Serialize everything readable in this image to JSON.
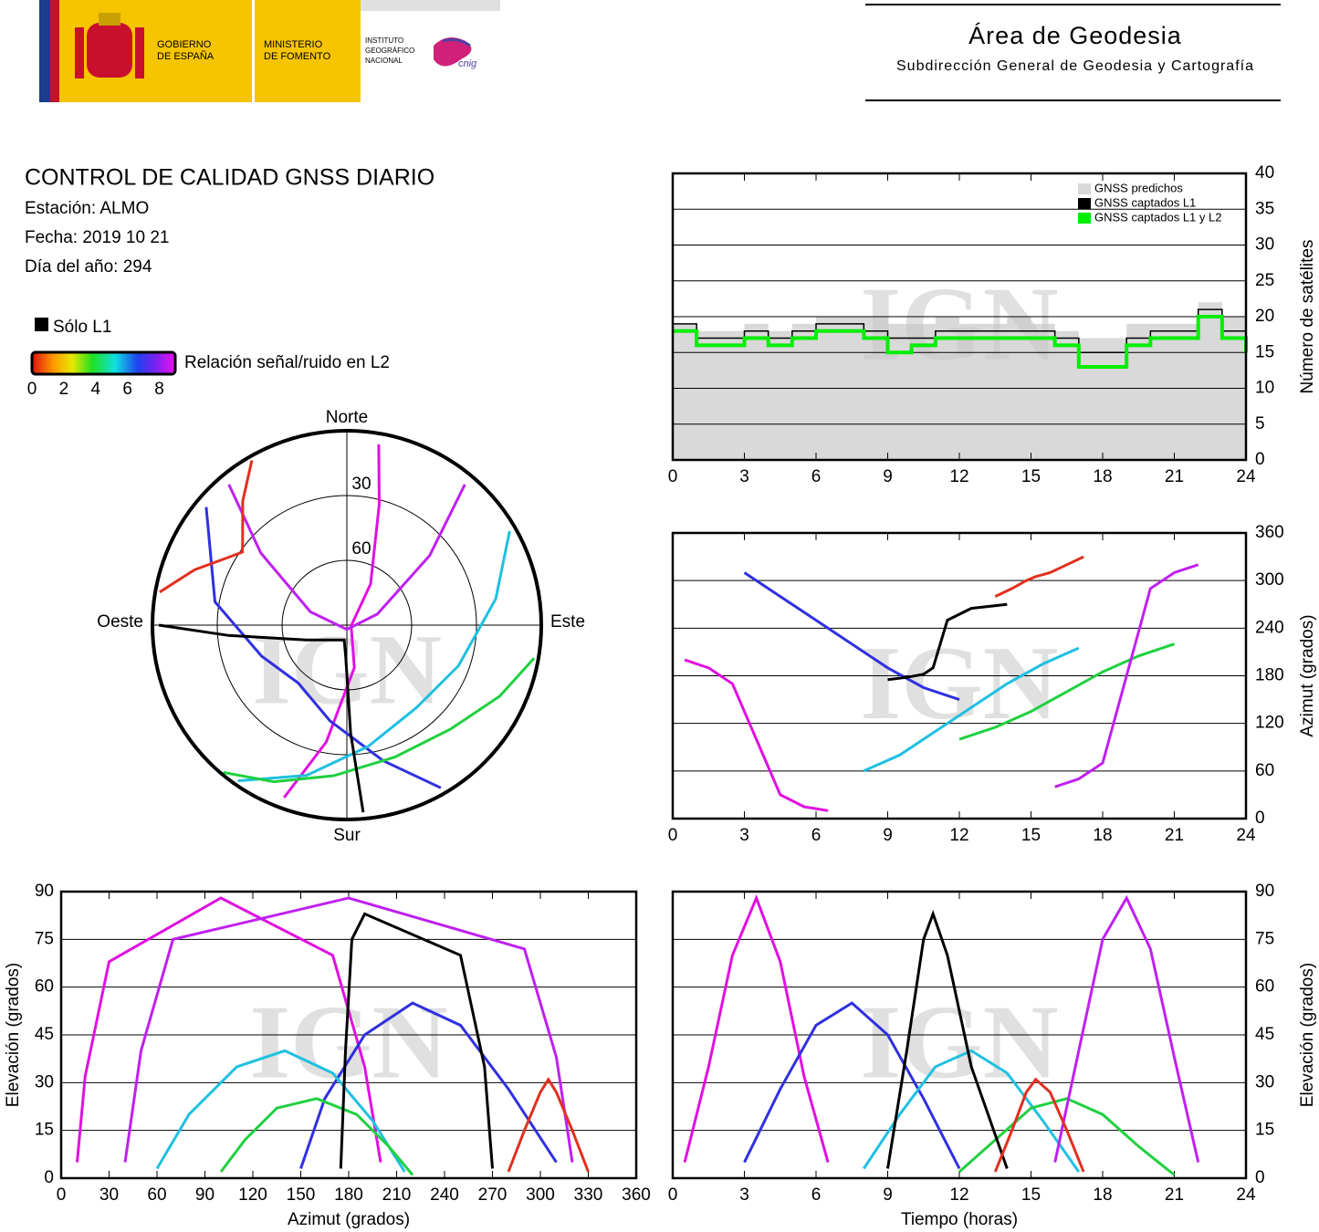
{
  "header": {
    "gobierno": [
      "GOBIERNO",
      "DE ESPAÑA"
    ],
    "ministerio": [
      "MINISTERIO",
      "DE FOMENTO"
    ],
    "instituto": [
      "INSTITUTO",
      "GEOGRÁFICO",
      "NACIONAL"
    ],
    "cnig": "cnig",
    "area": "Área de Geodesia",
    "subdireccion": "Subdirección General de Geodesia y Cartografía"
  },
  "report": {
    "title": "CONTROL DE CALIDAD GNSS DIARIO",
    "station": "Estación: ALMO",
    "date": "Fecha: 2019 10 21",
    "doy": "Día del año: 294"
  },
  "legend": {
    "l1_only": "Sólo L1",
    "snr_label": "Relación señal/ruido en L2",
    "snr_ticks": [
      0,
      2,
      4,
      6,
      8
    ],
    "snr_lim": [
      0,
      9
    ]
  },
  "watermark": "IGN",
  "chart_data": [
    {
      "type": "polar",
      "labels": {
        "north": "Norte",
        "south": "Sur",
        "east": "Este",
        "west": "Oeste"
      },
      "rlim": [
        90,
        0
      ],
      "rticks": [
        30,
        60
      ],
      "series": [
        {
          "color": "#e010e0",
          "x": [
            200,
            190,
            170,
            100,
            30,
            15,
            10
          ],
          "values": [
            5,
            35,
            70,
            88,
            68,
            32,
            5
          ]
        },
        {
          "color": "#3030e0",
          "x": [
            310,
            280,
            250,
            220,
            190,
            165,
            150
          ],
          "values": [
            5,
            28,
            48,
            55,
            45,
            25,
            3
          ]
        },
        {
          "color": "#20c0e0",
          "x": [
            60,
            80,
            110,
            140,
            170,
            195,
            215
          ],
          "values": [
            3,
            20,
            35,
            40,
            33,
            18,
            2
          ]
        },
        {
          "color": "#20d040",
          "x": [
            100,
            115,
            135,
            160,
            185,
            205,
            220
          ],
          "values": [
            2,
            12,
            22,
            25,
            20,
            10,
            1
          ]
        },
        {
          "color": "#000000",
          "x": [
            175,
            178,
            182,
            190,
            250,
            265,
            270
          ],
          "values": [
            3,
            40,
            75,
            83,
            70,
            35,
            3
          ]
        },
        {
          "color": "#c020f0",
          "x": [
            40,
            50,
            70,
            180,
            290,
            310,
            320
          ],
          "values": [
            5,
            40,
            75,
            88,
            72,
            38,
            5
          ]
        },
        {
          "color": "#e03020",
          "x": [
            280,
            290,
            300,
            305,
            310,
            320,
            330
          ],
          "values": [
            2,
            15,
            27,
            31,
            27,
            15,
            2
          ]
        }
      ]
    },
    {
      "type": "step",
      "ylabel": "Número de satélites",
      "yaxis_position": "right",
      "grid": "y",
      "legend_position": "upper right",
      "xlim": [
        0,
        24
      ],
      "xticks": [
        0,
        3,
        6,
        9,
        12,
        15,
        18,
        21,
        24
      ],
      "ylim": [
        0,
        40
      ],
      "yticks": [
        0,
        5,
        10,
        15,
        20,
        25,
        30,
        35,
        40
      ],
      "x": [
        0,
        1,
        2,
        3,
        4,
        5,
        6,
        7,
        8,
        9,
        10,
        11,
        12,
        13,
        14,
        15,
        16,
        17,
        18,
        19,
        20,
        21,
        22,
        23,
        24
      ],
      "series": [
        {
          "name": "GNSS predichos",
          "color": "#d9d9d9",
          "style": "area",
          "values": [
            19,
            18,
            18,
            19,
            18,
            19,
            20,
            20,
            20,
            19,
            19,
            20,
            19,
            19,
            20,
            19,
            18,
            17,
            17,
            19,
            19,
            19,
            22,
            20,
            18
          ]
        },
        {
          "name": "GNSS captados L1",
          "color": "#000000",
          "style": "step",
          "values": [
            19,
            17,
            17,
            18,
            17,
            18,
            19,
            19,
            18,
            17,
            17,
            18,
            18,
            18,
            18,
            18,
            17,
            15,
            15,
            17,
            18,
            18,
            21,
            18,
            17
          ]
        },
        {
          "name": "GNSS captados L1 y L2",
          "color": "#00ee00",
          "style": "step",
          "values": [
            18,
            16,
            16,
            17,
            16,
            17,
            18,
            18,
            17,
            15,
            16,
            17,
            17,
            17,
            17,
            17,
            16,
            13,
            13,
            16,
            17,
            17,
            20,
            17,
            15
          ]
        }
      ]
    },
    {
      "type": "line",
      "ylabel": "Azimut (grados)",
      "yaxis_position": "right",
      "grid": "y",
      "xlim": [
        0,
        24
      ],
      "xticks": [
        0,
        3,
        6,
        9,
        12,
        15,
        18,
        21,
        24
      ],
      "ylim": [
        0,
        360
      ],
      "yticks": [
        0,
        60,
        120,
        180,
        240,
        300,
        360
      ],
      "series": [
        {
          "color": "#e010e0",
          "x": [
            0.5,
            1.5,
            2.5,
            3.5,
            4.5,
            5.5,
            6.5
          ],
          "values": [
            200,
            190,
            170,
            100,
            30,
            15,
            10
          ]
        },
        {
          "color": "#3030e0",
          "x": [
            3,
            4.5,
            6,
            7.5,
            9,
            10.5,
            12
          ],
          "values": [
            310,
            280,
            250,
            220,
            190,
            165,
            150
          ]
        },
        {
          "color": "#20c0e0",
          "x": [
            8,
            9.5,
            11,
            12.5,
            14,
            15.5,
            17
          ],
          "values": [
            60,
            80,
            110,
            140,
            170,
            195,
            215
          ]
        },
        {
          "color": "#20d040",
          "x": [
            12,
            13.5,
            15,
            16.5,
            18,
            19.5,
            21
          ],
          "values": [
            100,
            115,
            135,
            160,
            185,
            205,
            220
          ]
        },
        {
          "color": "#000000",
          "x": [
            9,
            9.8,
            10.5,
            10.9,
            11.5,
            12.5,
            14
          ],
          "values": [
            175,
            178,
            182,
            190,
            250,
            265,
            270
          ]
        },
        {
          "color": "#c020f0",
          "x": [
            16,
            17,
            18,
            19,
            20,
            21,
            22
          ],
          "values": [
            40,
            50,
            70,
            180,
            290,
            310,
            320
          ]
        },
        {
          "color": "#e03020",
          "x": [
            13.5,
            14.2,
            14.8,
            15.2,
            15.8,
            16.5,
            17.2
          ],
          "values": [
            280,
            290,
            300,
            305,
            310,
            320,
            330
          ]
        }
      ]
    },
    {
      "type": "line",
      "xlabel": "Azimut (grados)",
      "ylabel": "Elevación (grados)",
      "yaxis_position": "left",
      "grid": "y",
      "xlim": [
        0,
        360
      ],
      "xticks": [
        0,
        30,
        60,
        90,
        120,
        150,
        180,
        210,
        240,
        270,
        300,
        330,
        360
      ],
      "ylim": [
        0,
        90
      ],
      "yticks": [
        0,
        15,
        30,
        45,
        60,
        75,
        90
      ],
      "series": [
        {
          "color": "#e010e0",
          "x": [
            200,
            190,
            170,
            100,
            30,
            15,
            10
          ],
          "values": [
            5,
            35,
            70,
            88,
            68,
            32,
            5
          ]
        },
        {
          "color": "#3030e0",
          "x": [
            310,
            280,
            250,
            220,
            190,
            165,
            150
          ],
          "values": [
            5,
            28,
            48,
            55,
            45,
            25,
            3
          ]
        },
        {
          "color": "#20c0e0",
          "x": [
            60,
            80,
            110,
            140,
            170,
            195,
            215
          ],
          "values": [
            3,
            20,
            35,
            40,
            33,
            18,
            2
          ]
        },
        {
          "color": "#20d040",
          "x": [
            100,
            115,
            135,
            160,
            185,
            205,
            220
          ],
          "values": [
            2,
            12,
            22,
            25,
            20,
            10,
            1
          ]
        },
        {
          "color": "#000000",
          "x": [
            175,
            178,
            182,
            190,
            250,
            265,
            270
          ],
          "values": [
            3,
            40,
            75,
            83,
            70,
            35,
            3
          ]
        },
        {
          "color": "#c020f0",
          "x": [
            40,
            50,
            70,
            180,
            290,
            310,
            320
          ],
          "values": [
            5,
            40,
            75,
            88,
            72,
            38,
            5
          ]
        },
        {
          "color": "#e03020",
          "x": [
            280,
            290,
            300,
            305,
            310,
            320,
            330
          ],
          "values": [
            2,
            15,
            27,
            31,
            27,
            15,
            2
          ]
        }
      ]
    },
    {
      "type": "line",
      "xlabel": "Tiempo (horas)",
      "ylabel": "Elevación (grados)",
      "yaxis_position": "right",
      "grid": "y",
      "xlim": [
        0,
        24
      ],
      "xticks": [
        0,
        3,
        6,
        9,
        12,
        15,
        18,
        21,
        24
      ],
      "ylim": [
        0,
        90
      ],
      "yticks": [
        0,
        15,
        30,
        45,
        60,
        75,
        90
      ],
      "series": [
        {
          "color": "#e010e0",
          "x": [
            0.5,
            1.5,
            2.5,
            3.5,
            4.5,
            5.5,
            6.5
          ],
          "values": [
            5,
            35,
            70,
            88,
            68,
            32,
            5
          ]
        },
        {
          "color": "#3030e0",
          "x": [
            3,
            4.5,
            6,
            7.5,
            9,
            10.5,
            12
          ],
          "values": [
            5,
            28,
            48,
            55,
            45,
            25,
            3
          ]
        },
        {
          "color": "#20c0e0",
          "x": [
            8,
            9.5,
            11,
            12.5,
            14,
            15.5,
            17
          ],
          "values": [
            3,
            20,
            35,
            40,
            33,
            18,
            2
          ]
        },
        {
          "color": "#20d040",
          "x": [
            12,
            13.5,
            15,
            16.5,
            18,
            19.5,
            21
          ],
          "values": [
            2,
            12,
            22,
            25,
            20,
            10,
            1
          ]
        },
        {
          "color": "#000000",
          "x": [
            9,
            9.8,
            10.5,
            10.9,
            11.5,
            12.5,
            14
          ],
          "values": [
            3,
            40,
            75,
            83,
            70,
            35,
            3
          ]
        },
        {
          "color": "#c020f0",
          "x": [
            16,
            17,
            18,
            19,
            20,
            21,
            22
          ],
          "values": [
            5,
            40,
            75,
            88,
            72,
            38,
            5
          ]
        },
        {
          "color": "#e03020",
          "x": [
            13.5,
            14.2,
            14.8,
            15.2,
            15.8,
            16.5,
            17.2
          ],
          "values": [
            2,
            15,
            27,
            31,
            27,
            15,
            2
          ]
        }
      ]
    }
  ]
}
